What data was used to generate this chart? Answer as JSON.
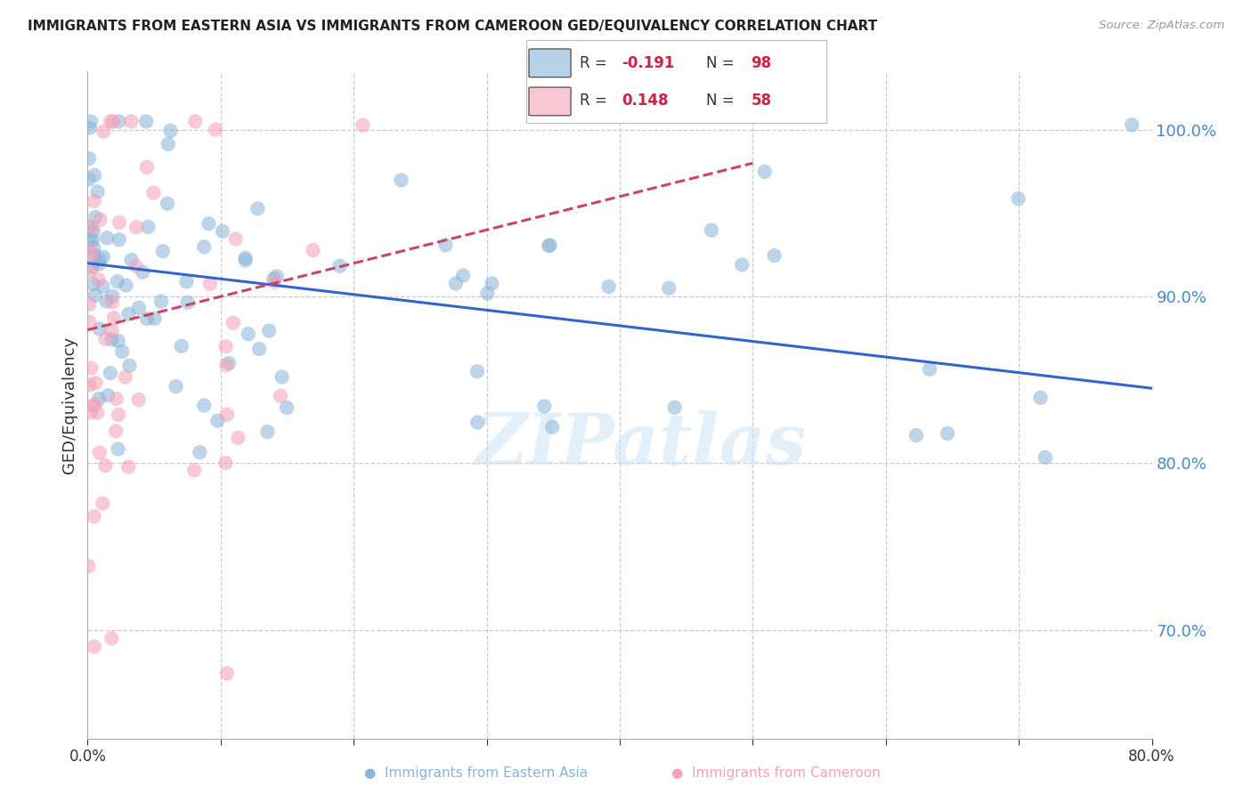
{
  "title": "IMMIGRANTS FROM EASTERN ASIA VS IMMIGRANTS FROM CAMEROON GED/EQUIVALENCY CORRELATION CHART",
  "source": "Source: ZipAtlas.com",
  "ylabel": "GED/Equivalency",
  "xlim": [
    0.0,
    0.8
  ],
  "ylim": [
    0.635,
    1.035
  ],
  "right_yticks": [
    0.7,
    0.8,
    0.9,
    1.0
  ],
  "right_ytick_labels": [
    "70.0%",
    "80.0%",
    "90.0%",
    "100.0%"
  ],
  "grid_color": "#cccccc",
  "background_color": "#ffffff",
  "blue_color": "#8ab4d8",
  "pink_color": "#f4a0b8",
  "blue_line_color": "#3366cc",
  "pink_line_color": "#cc4466",
  "watermark": "ZIPatlas",
  "blue_trend_x0": 0.0,
  "blue_trend_x1": 0.8,
  "blue_trend_y0": 0.92,
  "blue_trend_y1": 0.845,
  "pink_trend_x0": 0.0,
  "pink_trend_x1": 0.5,
  "pink_trend_y0": 0.88,
  "pink_trend_y1": 0.98,
  "legend_r1": "-0.191",
  "legend_n1": "98",
  "legend_r2": "0.148",
  "legend_n2": "58",
  "legend_color_r": "#cc2244",
  "legend_color_n": "#cc2244",
  "legend_text_color": "#333333",
  "ytick_color": "#4488cc",
  "xtick_label_color": "#333333",
  "bottom_legend_blue": "Immigrants from Eastern Asia",
  "bottom_legend_pink": "Immigrants from Cameroon"
}
